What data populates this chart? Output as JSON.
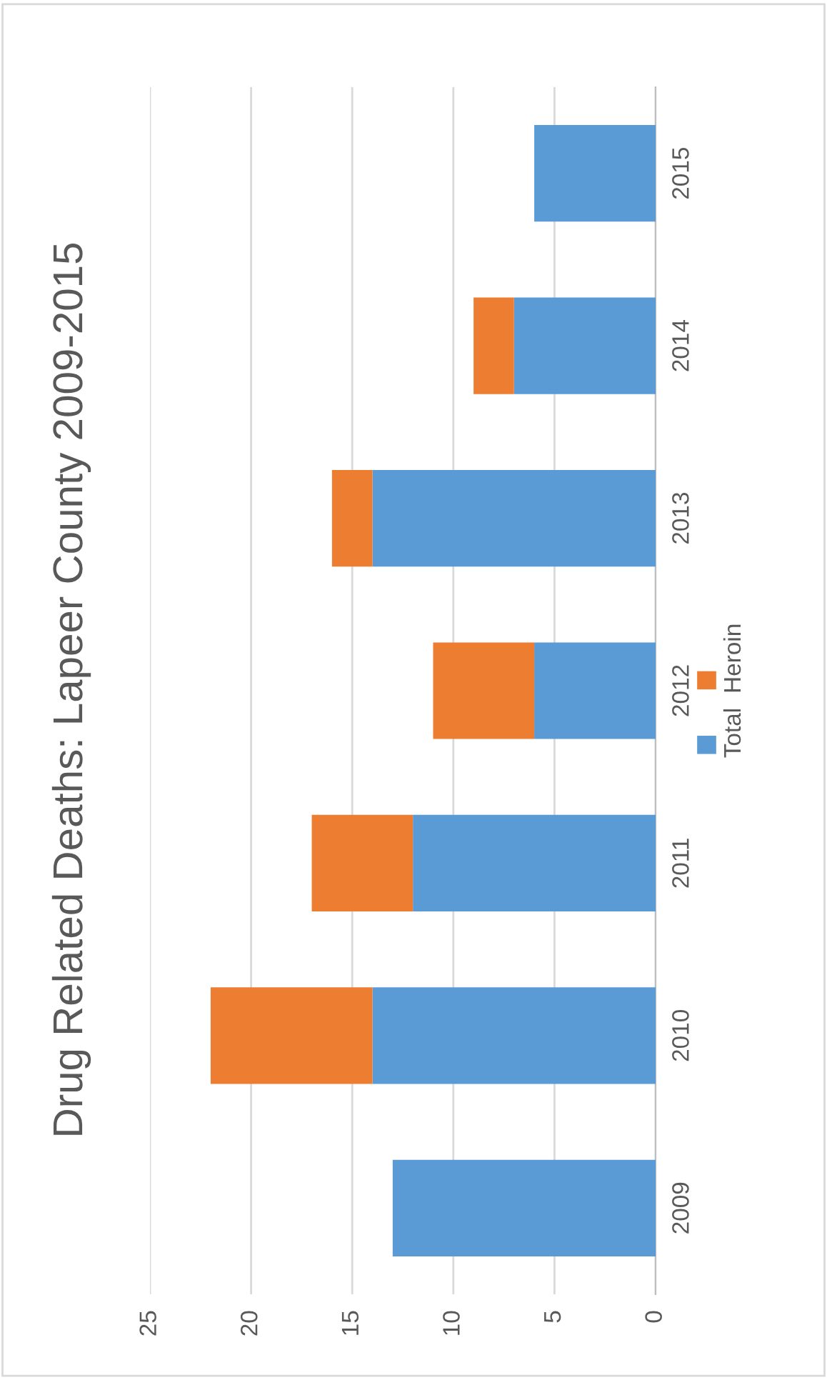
{
  "chart_data": {
    "type": "bar",
    "title": "Drug Related Deaths: Lapeer County 2009-2015",
    "orientation": "horizontal",
    "stacked": true,
    "categories": [
      "2015",
      "2014",
      "2013",
      "2012",
      "2011",
      "2010",
      "2009"
    ],
    "series": [
      {
        "name": "Total",
        "color": "#5b9bd5",
        "values": [
          6,
          7,
          14,
          6,
          12,
          14,
          13
        ]
      },
      {
        "name": "Heroin",
        "color": "#ed7d31",
        "values": [
          0,
          2,
          2,
          5,
          5,
          8,
          0
        ]
      }
    ],
    "xlim": [
      25,
      0
    ],
    "xticks": [
      25,
      20,
      15,
      10,
      5,
      0
    ],
    "grid": "x",
    "legend": "right"
  }
}
